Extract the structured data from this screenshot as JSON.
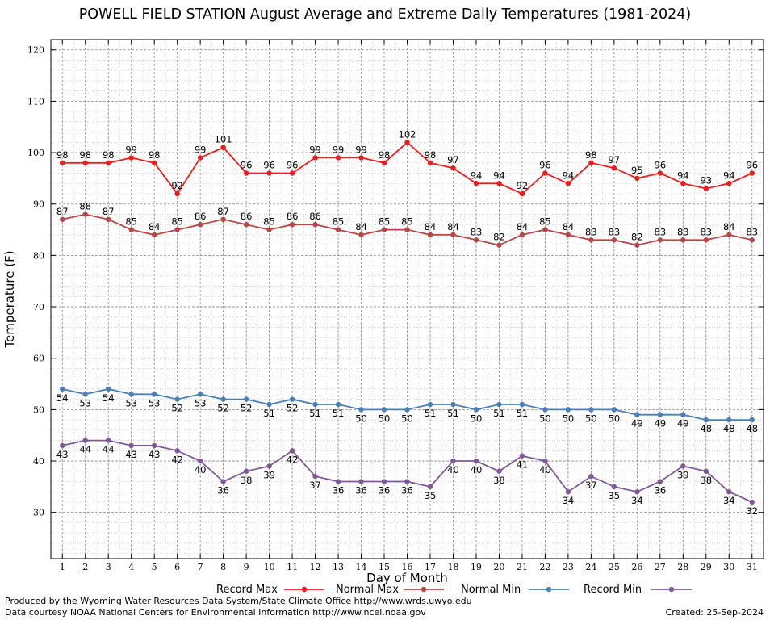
{
  "title": "POWELL FIELD STATION August Average and Extreme Daily Temperatures (1981-2024)",
  "footer": {
    "line1": "Produced by the Wyoming Water Resources Data System/State Climate Office http://www.wrds.uwyo.edu",
    "line2": "Data courtesy NOAA National Centers for Environmental Information http://www.ncei.noaa.gov",
    "created": "Created:  25-Sep-2024"
  },
  "chart_data": {
    "type": "line",
    "title": "POWELL FIELD STATION August Average and Extreme Daily Temperatures (1981-2024)",
    "xlabel": "Day of Month",
    "ylabel": "Temperature (F)",
    "xlim": [
      0.5,
      31.5
    ],
    "ylim": [
      21,
      122
    ],
    "y_ticks": [
      30,
      40,
      50,
      60,
      70,
      80,
      90,
      100,
      110,
      120
    ],
    "grid": true,
    "legend_position": "bottom",
    "x": [
      1,
      2,
      3,
      4,
      5,
      6,
      7,
      8,
      9,
      10,
      11,
      12,
      13,
      14,
      15,
      16,
      17,
      18,
      19,
      20,
      21,
      22,
      23,
      24,
      25,
      26,
      27,
      28,
      29,
      30,
      31
    ],
    "series": [
      {
        "name": "Record Max",
        "color": "#ee1c1c",
        "values": [
          98,
          98,
          98,
          99,
          98,
          92,
          99,
          101,
          96,
          96,
          96,
          99,
          99,
          99,
          98,
          102,
          98,
          97,
          94,
          94,
          92,
          96,
          94,
          98,
          97,
          95,
          96,
          94,
          93,
          94,
          96
        ]
      },
      {
        "name": "Normal Max",
        "color": "#b84646",
        "values": [
          87,
          88,
          87,
          85,
          84,
          85,
          86,
          87,
          86,
          85,
          86,
          86,
          85,
          84,
          85,
          85,
          84,
          84,
          83,
          82,
          84,
          85,
          84,
          83,
          83,
          82,
          83,
          83,
          83,
          84,
          83
        ]
      },
      {
        "name": "Normal Min",
        "color": "#4b7fb8",
        "values": [
          54,
          53,
          54,
          53,
          53,
          52,
          53,
          52,
          52,
          51,
          52,
          51,
          51,
          50,
          50,
          50,
          51,
          51,
          50,
          51,
          51,
          50,
          50,
          50,
          50,
          49,
          49,
          49,
          48,
          48,
          48
        ]
      },
      {
        "name": "Record Min",
        "color": "#80589a",
        "values": [
          43,
          44,
          44,
          43,
          43,
          42,
          40,
          36,
          38,
          39,
          42,
          37,
          36,
          36,
          36,
          36,
          35,
          40,
          40,
          38,
          41,
          40,
          34,
          37,
          35,
          34,
          36,
          39,
          38,
          34,
          32
        ]
      }
    ]
  }
}
